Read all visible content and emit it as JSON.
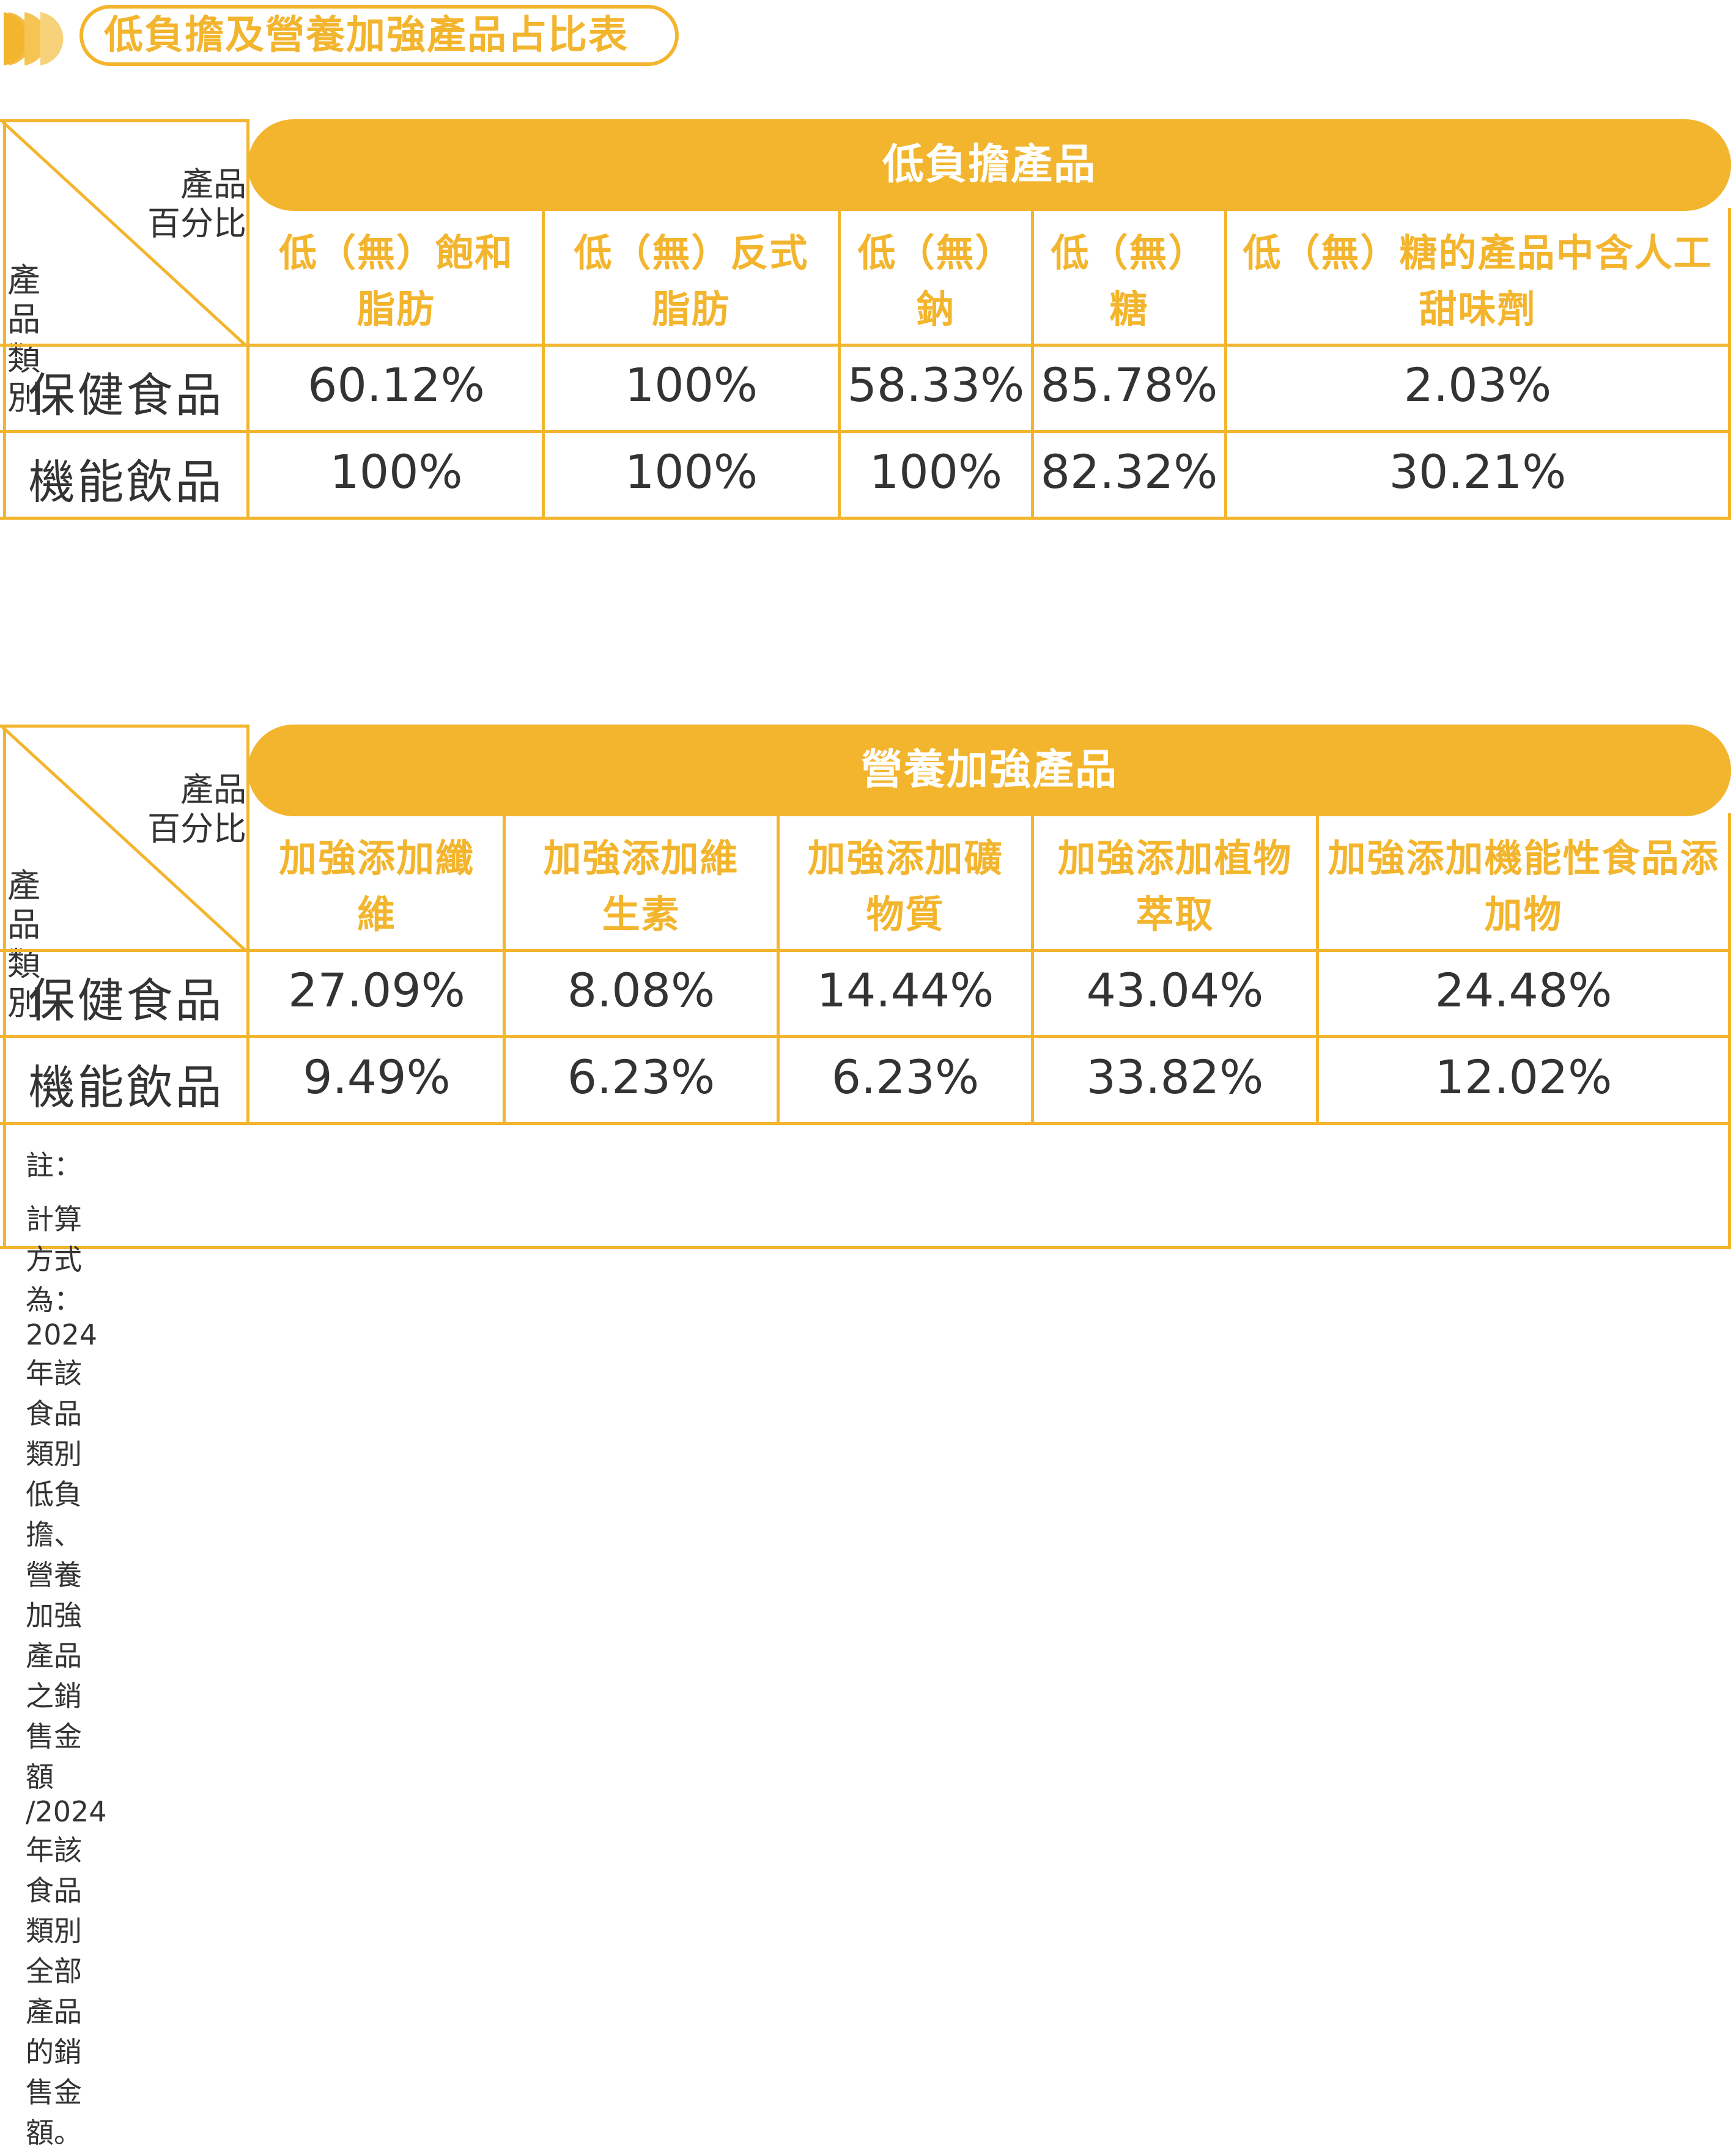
{
  "title": "低負擔及營養加強產品占比表",
  "corner": {
    "top_line1": "產品",
    "top_line2": "百分比",
    "bottom": "產品類別"
  },
  "table1": {
    "header": "低負擔產品",
    "columns": [
      [
        "低（無）飽和",
        "脂肪"
      ],
      [
        "低（無）反式",
        "脂肪"
      ],
      [
        "低（無）",
        "鈉"
      ],
      [
        "低（無）",
        "糖"
      ],
      [
        "低（無）糖的產品中含人工",
        "甜味劑"
      ]
    ],
    "rows": [
      {
        "label": "保健食品",
        "values": [
          "60.12%",
          "100%",
          "58.33%",
          "85.78%",
          "2.03%"
        ]
      },
      {
        "label": "機能飲品",
        "values": [
          "100%",
          "100%",
          "100%",
          "82.32%",
          "30.21%"
        ]
      }
    ]
  },
  "table2": {
    "header": "營養加強產品",
    "columns": [
      [
        "加強添加纖",
        "維"
      ],
      [
        "加強添加維",
        "生素"
      ],
      [
        "加強添加礦",
        "物質"
      ],
      [
        "加強添加植物",
        "萃取"
      ],
      [
        "加強添加機能性食品添",
        "加物"
      ]
    ],
    "rows": [
      {
        "label": "保健食品",
        "values": [
          "27.09%",
          "8.08%",
          "14.44%",
          "43.04%",
          "24.48%"
        ]
      },
      {
        "label": "機能飲品",
        "values": [
          "9.49%",
          "6.23%",
          "6.23%",
          "33.82%",
          "12.02%"
        ]
      }
    ]
  },
  "note": {
    "label": "註：",
    "text": "計算方式為：2024 年該食品類別低負擔、營養加強產品之銷售金額 /2024 年該食品類別全部產品的銷售金額。"
  },
  "accent_color": "#f3b52e"
}
